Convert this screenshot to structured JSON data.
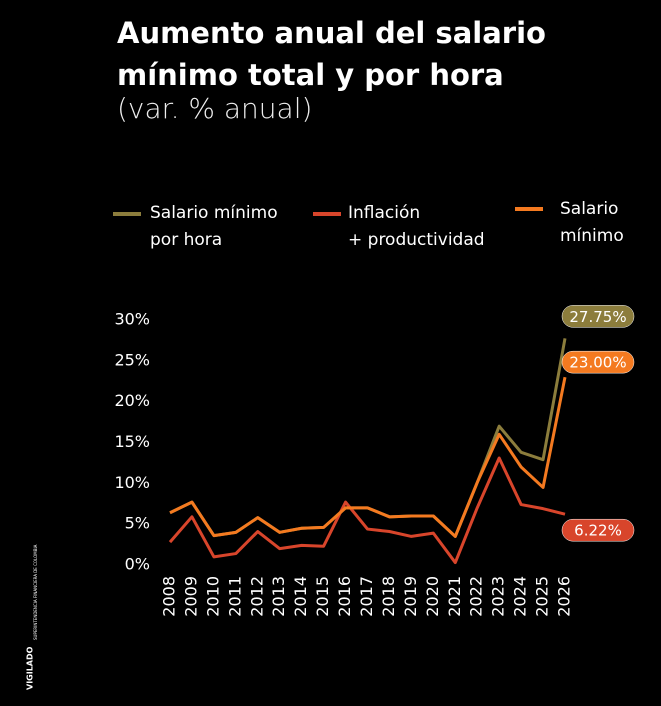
{
  "chart_data": {
    "type": "line",
    "title": "Aumento anual del salario\nmínimo total y por hora",
    "subtitle": "(var. % anual)",
    "side_note": "VIGILADO",
    "side_note_detail": "SUPERINTENDENCIA FINANCIERA DE COLOMBIA",
    "categories": [
      "2008",
      "2009",
      "2010",
      "2011",
      "2012",
      "2013",
      "2014",
      "2015",
      "2016",
      "2017",
      "2018",
      "2019",
      "2020",
      "2021",
      "2022",
      "2023",
      "2024",
      "2025",
      "2026"
    ],
    "series": [
      {
        "name": "Salario mínimo\npor hora",
        "color": "#8c7d3c",
        "values": [
          6.4,
          7.7,
          3.6,
          4.0,
          5.8,
          4.0,
          4.5,
          4.6,
          7.0,
          7.0,
          5.9,
          6.0,
          6.0,
          3.5,
          10.1,
          17.0,
          13.8,
          12.9,
          27.75
        ],
        "value_labels": [
          null,
          null,
          null,
          null,
          null,
          null,
          null,
          null,
          null,
          null,
          null,
          null,
          null,
          null,
          null,
          null,
          null,
          null,
          "27.75%"
        ]
      },
      {
        "name": "Inflación\n+ productividad",
        "color": "#d8452b",
        "values": [
          2.8,
          5.9,
          1.0,
          1.4,
          4.1,
          2.0,
          2.4,
          2.3,
          7.7,
          4.4,
          4.1,
          3.5,
          3.9,
          0.3,
          7.0,
          13.1,
          7.4,
          6.9,
          6.22
        ],
        "value_labels": [
          null,
          null,
          null,
          null,
          null,
          null,
          null,
          null,
          null,
          null,
          null,
          null,
          null,
          null,
          null,
          null,
          null,
          null,
          "6.22%"
        ]
      },
      {
        "name": "Salario\nmínimo",
        "color": "#f47a20",
        "values": [
          6.4,
          7.7,
          3.6,
          4.0,
          5.8,
          4.0,
          4.5,
          4.6,
          7.0,
          7.0,
          5.9,
          6.0,
          6.0,
          3.5,
          10.1,
          16.0,
          12.0,
          9.5,
          23.0
        ],
        "value_labels": [
          null,
          null,
          null,
          null,
          null,
          null,
          null,
          null,
          null,
          null,
          null,
          null,
          null,
          null,
          null,
          null,
          null,
          null,
          "23.00%"
        ]
      }
    ],
    "ylim": [
      0,
      30
    ],
    "yticks": [
      {
        "value": 0,
        "label": "0%"
      },
      {
        "value": 5,
        "label": "5%"
      },
      {
        "value": 10,
        "label": "10%"
      },
      {
        "value": 15,
        "label": "15%"
      },
      {
        "value": 20,
        "label": "20%"
      },
      {
        "value": 25,
        "label": "25%"
      },
      {
        "value": 30,
        "label": "30%"
      }
    ]
  }
}
